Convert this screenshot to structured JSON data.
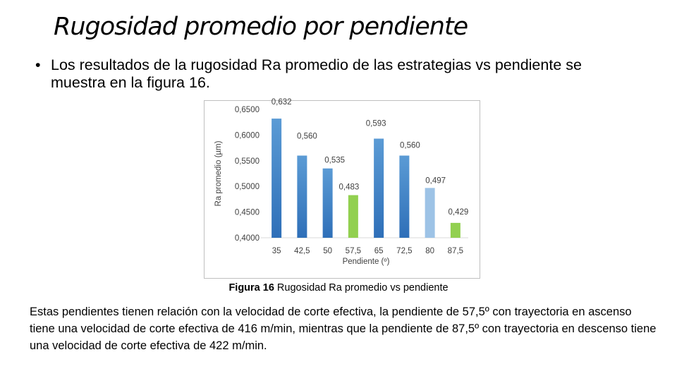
{
  "slide": {
    "title": "Rugosidad promedio por pendiente",
    "bullet_symbol": "•",
    "bullet_text": "Los resultados de la rugosidad Ra promedio de las estrategias vs pendiente se muestra en la figura 16.",
    "caption_label": "Figura 16",
    "caption_text": " Rugosidad Ra promedio vs pendiente",
    "paragraph": "Estas pendientes tienen relación con la velocidad de corte efectiva, la pendiente de 57,5º con trayectoria en ascenso tiene una velocidad de corte efectiva de 416 m/min, mientras que la pendiente de 87,5º con trayectoria en descenso tiene una velocidad de corte efectiva de 422 m/min."
  },
  "chart_data": {
    "type": "bar",
    "title": "",
    "xlabel": "Pendiente (º)",
    "ylabel": "Ra promedio (µm)",
    "ylim": [
      0.4,
      0.65
    ],
    "yticks": [
      0.4,
      0.45,
      0.5,
      0.55,
      0.6,
      0.65
    ],
    "ytick_labels": [
      "0,4000",
      "0,4500",
      "0,5000",
      "0,5500",
      "0,6000",
      "0,6500"
    ],
    "categories": [
      "35",
      "42,5",
      "50",
      "57,5",
      "65",
      "72,5",
      "80",
      "87,5"
    ],
    "values": [
      0.632,
      0.56,
      0.535,
      0.483,
      0.593,
      0.56,
      0.497,
      0.429
    ],
    "value_labels": [
      "0,632",
      "0,560",
      "0,535",
      "0,483",
      "0,593",
      "0,560",
      "0,497",
      "0,429"
    ],
    "bar_colors": [
      "#4a86c8",
      "#4a86c8",
      "#4a86c8",
      "#92d050",
      "#4a86c8",
      "#4a86c8",
      "#9dc3e6",
      "#92d050"
    ],
    "grid": false,
    "legend": "none"
  }
}
